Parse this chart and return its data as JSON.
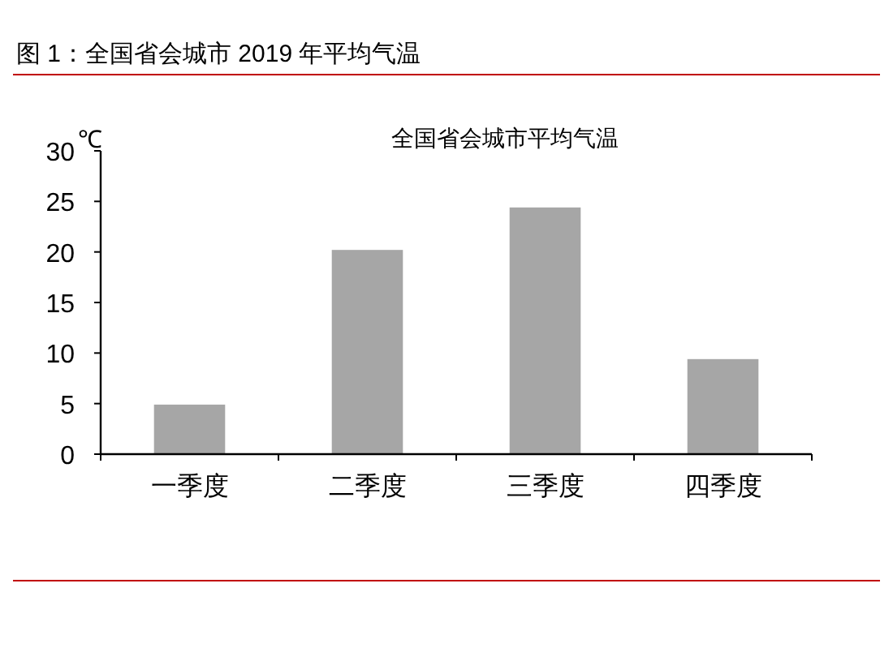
{
  "chart_data": {
    "type": "bar",
    "title": "图 1：全国省会城市 2019 年平均气温",
    "subtitle": "全国省会城市平均气温",
    "ylabel": "℃",
    "categories": [
      "一季度",
      "二季度",
      "三季度",
      "四季度"
    ],
    "values": [
      4.9,
      20.2,
      24.4,
      9.4
    ],
    "color": "#a6a6a6",
    "ylim": [
      0,
      30
    ],
    "yticks": [
      0,
      5,
      10,
      15,
      20,
      25,
      30
    ]
  }
}
